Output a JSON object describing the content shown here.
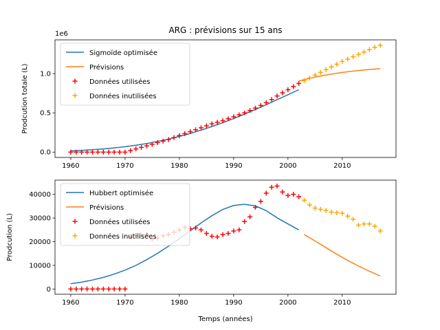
{
  "chart_data": [
    {
      "type": "line",
      "title": "ARG : prévisions sur 15 ans",
      "ylabel": "Prodcution totale (L)",
      "xlabel": "",
      "offset_label": "1e6",
      "xlim": [
        1957.1,
        2019.9
      ],
      "ylim": [
        -0.068,
        1.43
      ],
      "xticks": [
        1960,
        1970,
        1980,
        1990,
        2000,
        2010
      ],
      "xtick_labels": [
        "1960",
        "1970",
        "1980",
        "1990",
        "2000",
        "2010"
      ],
      "yticks": [
        0.0,
        0.5,
        1.0
      ],
      "ytick_labels": [
        "0.0",
        "0.5",
        "1.0"
      ],
      "legend_position": "upper-left",
      "series": [
        {
          "name": "Sigmoïde optimisée",
          "style": "line",
          "color": "#1f77b4",
          "x": [
            1960,
            1962,
            1964,
            1966,
            1968,
            1970,
            1972,
            1974,
            1976,
            1978,
            1980,
            1982,
            1984,
            1986,
            1988,
            1990,
            1992,
            1994,
            1996,
            1998,
            2000,
            2002
          ],
          "y": [
            0.015,
            0.022,
            0.03,
            0.041,
            0.054,
            0.069,
            0.088,
            0.11,
            0.136,
            0.166,
            0.2,
            0.238,
            0.28,
            0.326,
            0.375,
            0.428,
            0.484,
            0.543,
            0.604,
            0.667,
            0.731,
            0.795
          ]
        },
        {
          "name": "Prévisions",
          "style": "line",
          "color": "#ff7f0e",
          "x": [
            2002,
            2004,
            2006,
            2008,
            2010,
            2012,
            2014,
            2016,
            2017
          ],
          "y": [
            0.905,
            0.94,
            0.97,
            0.995,
            1.015,
            1.032,
            1.046,
            1.058,
            1.063
          ]
        },
        {
          "name": "Données utilisées",
          "style": "marker",
          "color": "#ff0000",
          "x": [
            1960,
            1961,
            1962,
            1963,
            1964,
            1965,
            1966,
            1967,
            1968,
            1969,
            1970,
            1971,
            1972,
            1973,
            1974,
            1975,
            1976,
            1977,
            1978,
            1979,
            1980,
            1981,
            1982,
            1983,
            1984,
            1985,
            1986,
            1987,
            1988,
            1989,
            1990,
            1991,
            1992,
            1993,
            1994,
            1995,
            1996,
            1997,
            1998,
            1999,
            2000,
            2001,
            2002
          ],
          "y": [
            0.0,
            0.0,
            0.0,
            0.0,
            0.0,
            0.0,
            0.0,
            0.0,
            0.0,
            0.0,
            0.0,
            0.02,
            0.04,
            0.06,
            0.08,
            0.1,
            0.12,
            0.14,
            0.16,
            0.185,
            0.21,
            0.235,
            0.26,
            0.285,
            0.31,
            0.335,
            0.36,
            0.38,
            0.4,
            0.425,
            0.45,
            0.475,
            0.5,
            0.53,
            0.56,
            0.595,
            0.63,
            0.67,
            0.715,
            0.755,
            0.795,
            0.835,
            0.875
          ]
        },
        {
          "name": "Données inutilisées",
          "style": "marker",
          "color": "#ffa500",
          "x": [
            2003,
            2004,
            2005,
            2006,
            2007,
            2008,
            2009,
            2010,
            2011,
            2012,
            2013,
            2014,
            2015,
            2016,
            2017
          ],
          "y": [
            0.91,
            0.945,
            0.98,
            1.015,
            1.05,
            1.085,
            1.12,
            1.155,
            1.185,
            1.215,
            1.245,
            1.275,
            1.305,
            1.335,
            1.36
          ]
        }
      ]
    },
    {
      "type": "line",
      "title": "",
      "ylabel": "Prodcution (L)",
      "xlabel": "Temps (années)",
      "offset_label": "",
      "xlim": [
        1957.1,
        2019.9
      ],
      "ylim": [
        -2200,
        46000
      ],
      "xticks": [
        1960,
        1970,
        1980,
        1990,
        2000,
        2010
      ],
      "xtick_labels": [
        "1960",
        "1970",
        "1980",
        "1990",
        "2000",
        "2010"
      ],
      "yticks": [
        0,
        10000,
        20000,
        30000,
        40000
      ],
      "ytick_labels": [
        "0",
        "10000",
        "20000",
        "30000",
        "40000"
      ],
      "legend_position": "upper-left",
      "series": [
        {
          "name": "Hubbert optimisée",
          "style": "line",
          "color": "#1f77b4",
          "x": [
            1960,
            1962,
            1964,
            1966,
            1968,
            1970,
            1972,
            1974,
            1976,
            1978,
            1980,
            1982,
            1984,
            1986,
            1988,
            1990,
            1992,
            1994,
            1996,
            1998,
            2000,
            2002
          ],
          "y": [
            2200,
            2900,
            3800,
            4900,
            6300,
            8000,
            10000,
            12400,
            15100,
            18100,
            21300,
            24600,
            27900,
            31000,
            33600,
            35300,
            35800,
            35100,
            33100,
            30100,
            27500,
            25000
          ]
        },
        {
          "name": "Prévisions",
          "style": "line",
          "color": "#ff7f0e",
          "x": [
            2003,
            2005,
            2007,
            2009,
            2011,
            2013,
            2015,
            2017
          ],
          "y": [
            23000,
            20300,
            17500,
            14700,
            12100,
            9700,
            7500,
            5500
          ]
        },
        {
          "name": "Données utilisées",
          "style": "marker",
          "color": "#ff0000",
          "x": [
            1960,
            1961,
            1962,
            1963,
            1964,
            1965,
            1966,
            1967,
            1968,
            1969,
            1970,
            1971,
            1972,
            1973,
            1974,
            1975,
            1976,
            1977,
            1978,
            1979,
            1980,
            1981,
            1982,
            1983,
            1984,
            1985,
            1986,
            1987,
            1988,
            1989,
            1990,
            1991,
            1992,
            1993,
            1994,
            1995,
            1996,
            1997,
            1998,
            1999,
            2000,
            2001,
            2002
          ],
          "y": [
            0,
            0,
            0,
            0,
            0,
            0,
            0,
            0,
            0,
            0,
            0,
            22000,
            22500,
            22800,
            23000,
            21000,
            21500,
            22500,
            23000,
            24000,
            25000,
            26000,
            25500,
            25800,
            25000,
            23500,
            22300,
            22000,
            23000,
            23500,
            24500,
            25000,
            28500,
            30500,
            34500,
            37000,
            40500,
            43000,
            43500,
            41000,
            39500,
            40000,
            39000
          ]
        },
        {
          "name": "Données inutilisées",
          "style": "marker",
          "color": "#ffa500",
          "x": [
            2003,
            2004,
            2005,
            2006,
            2007,
            2008,
            2009,
            2010,
            2011,
            2012,
            2013,
            2014,
            2015,
            2016,
            2017
          ],
          "y": [
            37500,
            35500,
            34200,
            33700,
            33200,
            32500,
            32200,
            32000,
            30800,
            29500,
            27000,
            27500,
            27500,
            26500,
            24500
          ]
        }
      ]
    }
  ]
}
